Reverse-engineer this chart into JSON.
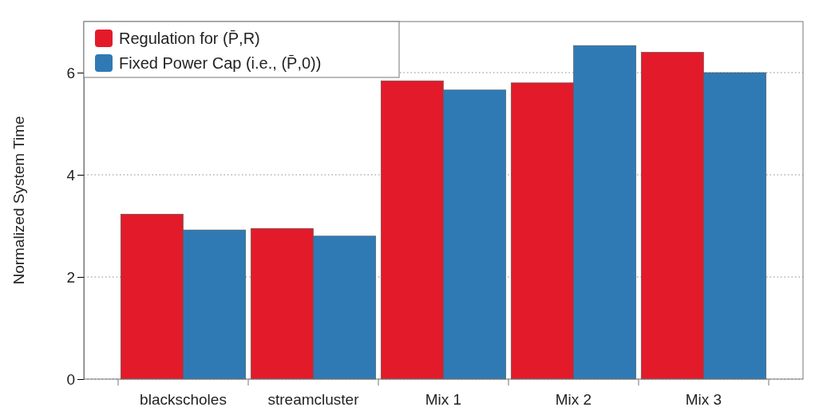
{
  "chart_data": {
    "type": "bar",
    "ylabel": "Normalized System Time",
    "categories": [
      "blackscholes",
      "streamcluster",
      "Mix 1",
      "Mix 2",
      "Mix 3"
    ],
    "series": [
      {
        "name": "Regulation for (P̄,R)",
        "color": "#e31a2a",
        "values": [
          3.23,
          2.95,
          5.84,
          5.8,
          6.4
        ]
      },
      {
        "name": "Fixed Power Cap (i.e., (P̄,0))",
        "color": "#2f7ab5",
        "values": [
          2.92,
          2.8,
          5.66,
          6.53,
          6.0
        ]
      }
    ],
    "ylim": [
      0,
      7
    ],
    "yticks": [
      0,
      2,
      4,
      6
    ],
    "grid": "y",
    "legend": "top left"
  }
}
